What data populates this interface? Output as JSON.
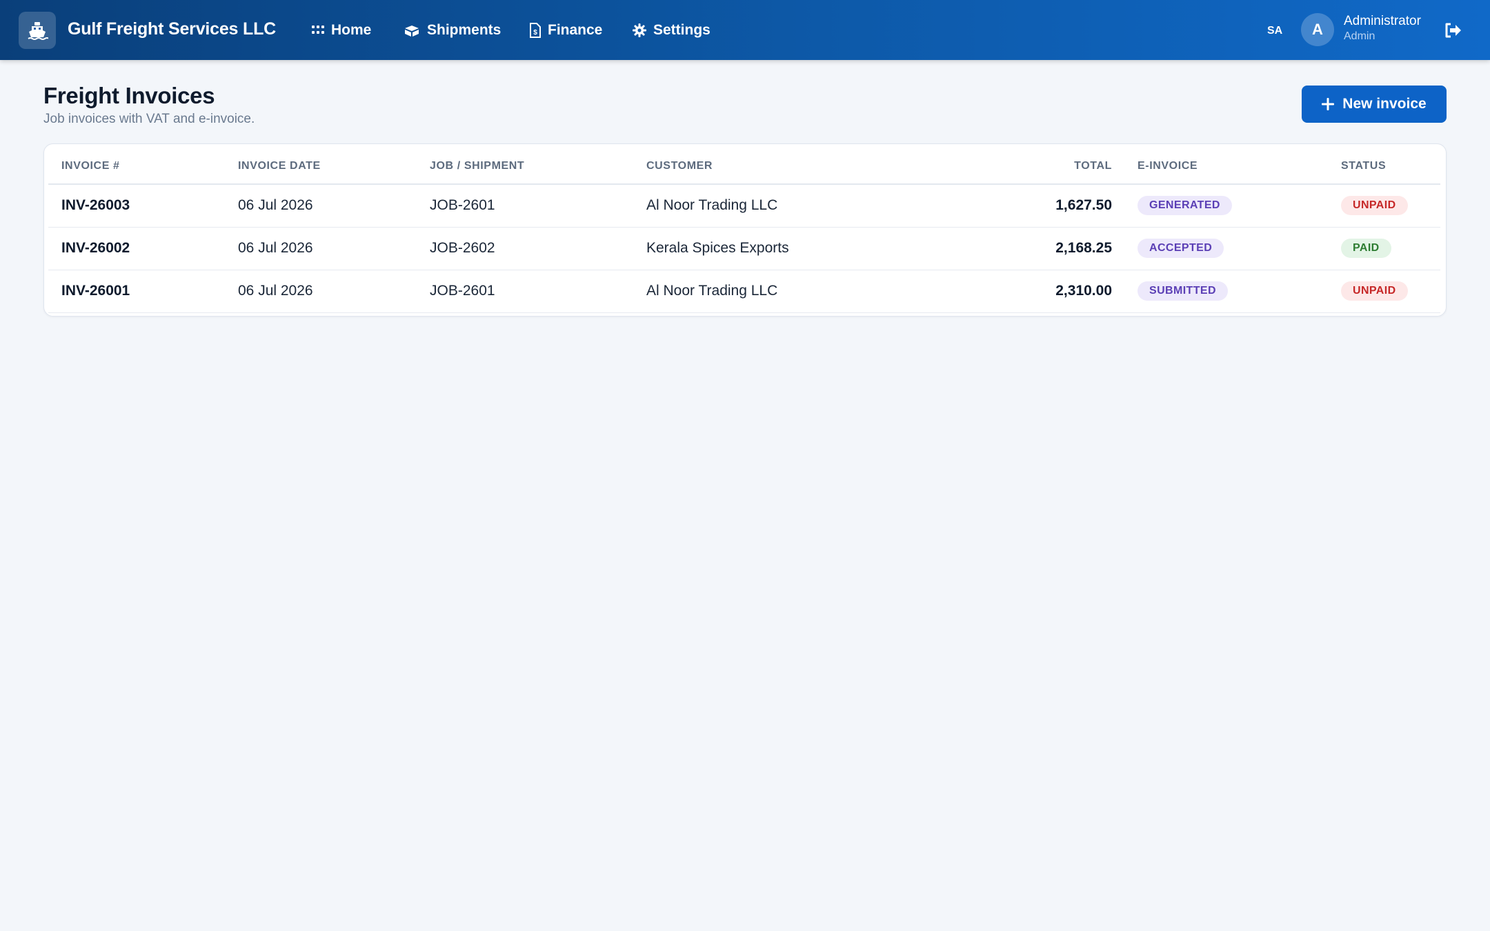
{
  "app": {
    "brand": "Gulf Freight Services LLC",
    "nav": [
      {
        "label": "Home",
        "icon": "grid-icon"
      },
      {
        "label": "Shipments",
        "icon": "boxes-icon"
      },
      {
        "label": "Finance",
        "icon": "invoice-file-icon"
      },
      {
        "label": "Settings",
        "icon": "gear-icon"
      }
    ],
    "language": "SA",
    "user": {
      "initial": "A",
      "name": "Administrator",
      "role": "Admin"
    }
  },
  "page": {
    "title": "Freight Invoices",
    "subtitle": "Job invoices with VAT and e-invoice.",
    "new_button_label": "New invoice"
  },
  "table": {
    "columns": [
      "INVOICE #",
      "INVOICE DATE",
      "JOB / SHIPMENT",
      "CUSTOMER",
      "TOTAL",
      "E-INVOICE",
      "STATUS"
    ],
    "rows": [
      {
        "invoice": "INV-26003",
        "date": "06 Jul 2026",
        "job": "JOB-2601",
        "customer": "Al Noor Trading LLC",
        "total": "1,627.50",
        "einvoice": "GENERATED",
        "status": "UNPAID"
      },
      {
        "invoice": "INV-26002",
        "date": "06 Jul 2026",
        "job": "JOB-2602",
        "customer": "Kerala Spices Exports",
        "total": "2,168.25",
        "einvoice": "ACCEPTED",
        "status": "PAID"
      },
      {
        "invoice": "INV-26001",
        "date": "06 Jul 2026",
        "job": "JOB-2601",
        "customer": "Al Noor Trading LLC",
        "total": "2,310.00",
        "einvoice": "SUBMITTED",
        "status": "UNPAID"
      }
    ]
  },
  "colors": {
    "nav_start": "#0a3f7a",
    "nav_end": "#1069c8",
    "primary_button": "#0d63c7",
    "einvoice_badge": "#5b3fb5",
    "unpaid_badge": "#c62828",
    "paid_badge": "#2e7d32"
  }
}
